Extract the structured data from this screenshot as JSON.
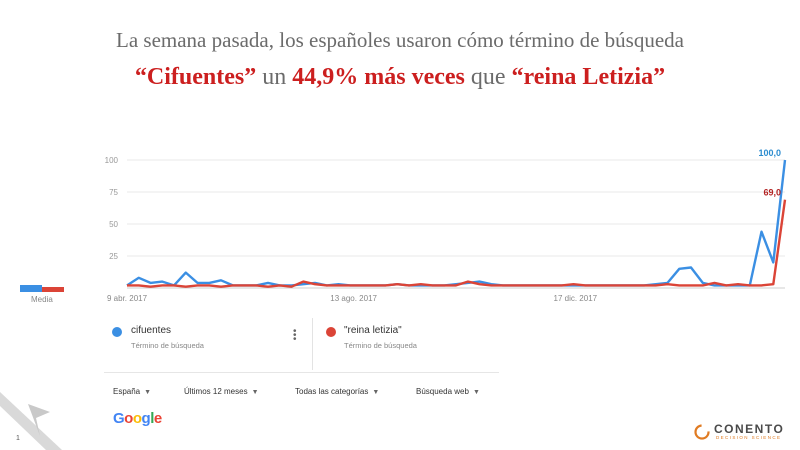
{
  "headline": {
    "line1": "La semana pasada, los españoles usaron cómo término de búsqueda",
    "line2_part1": "“Cifuentes”",
    "line2_part2": " un ",
    "line2_part3": "44,9% más veces",
    "line2_part4": " que ",
    "line2_part5": "“reina Letizia”"
  },
  "legend": {
    "average_label": "Media"
  },
  "terms": [
    {
      "name": "cifuentes",
      "subtitle": "Término de búsqueda",
      "color": "#3b8fe3"
    },
    {
      "name": "\"reina letizia\"",
      "subtitle": "Término de búsqueda",
      "color": "#db4437"
    }
  ],
  "filters": [
    {
      "label": "España"
    },
    {
      "label": "Últimos 12 meses"
    },
    {
      "label": "Todas las categorías"
    },
    {
      "label": "Búsqueda web"
    }
  ],
  "google_logo": {
    "letters": [
      "G",
      "o",
      "o",
      "g",
      "l",
      "e"
    ],
    "colors": [
      "#4285f4",
      "#ea4335",
      "#fbbc05",
      "#4285f4",
      "#34a853",
      "#ea4335"
    ]
  },
  "page_number": "1",
  "brand": {
    "name": "CONENTO",
    "tagline": "DECISION SCIENCE"
  },
  "chart_data": {
    "type": "line",
    "ylim": [
      0,
      100
    ],
    "yticks": [
      25,
      50,
      75,
      100
    ],
    "xtick_labels": [
      "9 abr. 2017",
      "13 ago. 2017",
      "17 dic. 2017"
    ],
    "grid": true,
    "legend": "bottom",
    "series": [
      {
        "name": "cifuentes",
        "color": "#3b8fe3",
        "end_label": "100,0",
        "values": [
          2,
          8,
          4,
          5,
          2,
          12,
          4,
          4,
          6,
          2,
          2,
          2,
          4,
          2,
          2,
          3,
          4,
          2,
          3,
          2,
          2,
          2,
          2,
          3,
          2,
          2,
          2,
          2,
          3,
          4,
          5,
          3,
          2,
          2,
          2,
          2,
          2,
          2,
          2,
          2,
          2,
          2,
          2,
          2,
          2,
          3,
          4,
          15,
          16,
          4,
          2,
          2,
          2,
          2,
          44,
          20,
          100
        ]
      },
      {
        "name": "\"reina letizia\"",
        "color": "#db4437",
        "end_label": "69,0",
        "values": [
          2,
          2,
          1,
          2,
          2,
          1,
          2,
          2,
          1,
          2,
          2,
          2,
          1,
          2,
          1,
          5,
          3,
          2,
          2,
          2,
          2,
          2,
          2,
          3,
          2,
          3,
          2,
          2,
          2,
          5,
          3,
          2,
          2,
          2,
          2,
          2,
          2,
          2,
          3,
          2,
          2,
          2,
          2,
          2,
          2,
          2,
          3,
          2,
          2,
          2,
          4,
          2,
          3,
          2,
          2,
          3,
          69
        ]
      }
    ],
    "average": [
      {
        "name": "cifuentes",
        "color": "#3b8fe3"
      },
      {
        "name": "\"reina letizia\"",
        "color": "#db4437"
      }
    ]
  }
}
